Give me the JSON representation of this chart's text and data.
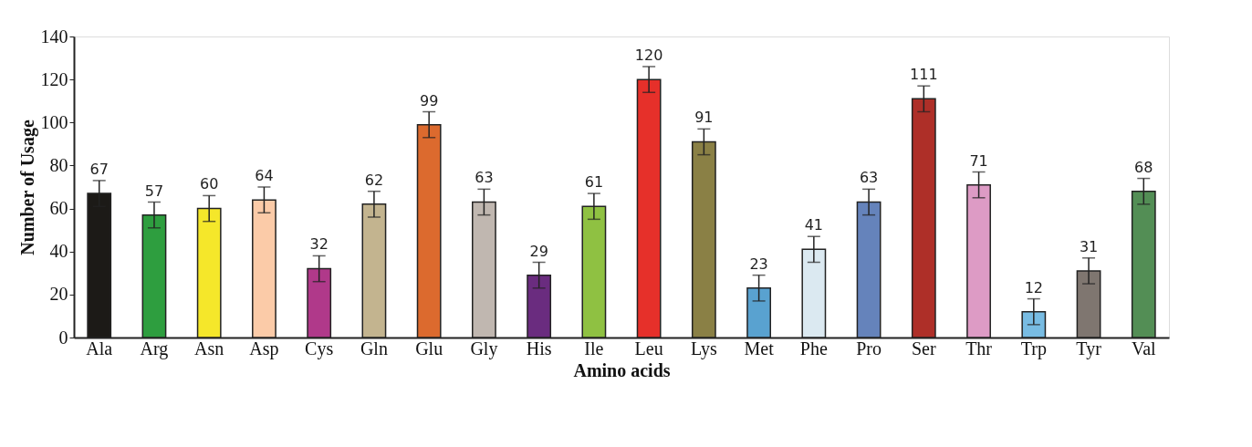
{
  "chart_data": {
    "type": "bar",
    "xlabel": "Amino acids",
    "ylabel": "Number of Usage",
    "categories": [
      "Ala",
      "Arg",
      "Asn",
      "Asp",
      "Cys",
      "Gln",
      "Glu",
      "Gly",
      "His",
      "Ile",
      "Leu",
      "Lys",
      "Met",
      "Phe",
      "Pro",
      "Ser",
      "Thr",
      "Trp",
      "Tyr",
      "Val"
    ],
    "values": [
      67,
      57,
      60,
      64,
      32,
      62,
      99,
      63,
      29,
      61,
      120,
      91,
      23,
      41,
      63,
      111,
      71,
      12,
      31,
      68
    ],
    "colors": [
      "#1c1a17",
      "#2e9e3f",
      "#f5e72a",
      "#fbcba8",
      "#b0398a",
      "#c3b48f",
      "#dc6a2e",
      "#c0b7b0",
      "#6a2c7f",
      "#8fc142",
      "#e6302a",
      "#8a8045",
      "#59a2d0",
      "#dbe9f1",
      "#6583bb",
      "#ae2f28",
      "#dd9bc5",
      "#78bce3",
      "#7f7670",
      "#538e55"
    ],
    "errors": [
      6,
      6,
      6,
      6,
      6,
      6,
      6,
      6,
      6,
      6,
      6,
      6,
      6,
      6,
      6,
      6,
      6,
      6,
      6,
      6
    ],
    "ylim": [
      0,
      140
    ],
    "yticks": [
      0,
      20,
      40,
      60,
      80,
      100,
      120,
      140
    ],
    "data_labels": true,
    "grid": false
  }
}
